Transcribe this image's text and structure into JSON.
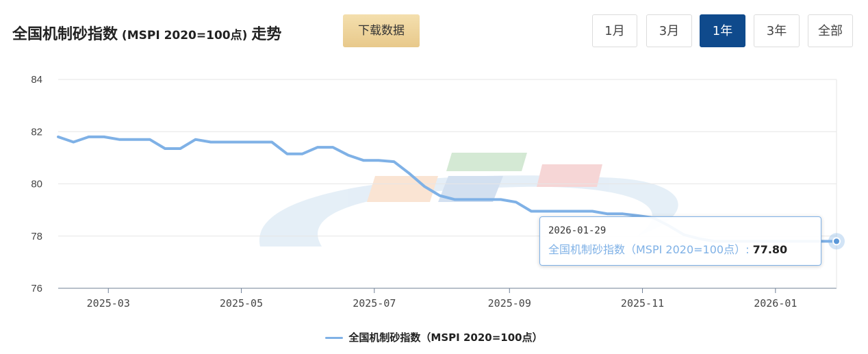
{
  "header": {
    "title_prefix": "全国机制砂指数",
    "title_mid": " (MSPI 2020=100点) ",
    "title_suffix": "走势",
    "download_label": "下载数据"
  },
  "range_buttons": [
    {
      "label": "1月",
      "active": false
    },
    {
      "label": "3月",
      "active": false
    },
    {
      "label": "1年",
      "active": true
    },
    {
      "label": "3年",
      "active": false
    },
    {
      "label": "全部",
      "active": false
    }
  ],
  "tooltip": {
    "date": "2026-01-29",
    "series_label": "全国机制砂指数（MSPI 2020=100点）",
    "separator": ":",
    "value": "77.80"
  },
  "legend": {
    "label": "全国机制砂指数（MSPI 2020=100点）"
  },
  "colors": {
    "line": "#7fb1e6",
    "active_button": "#0f4a8c",
    "download_button": "#ecd29c"
  },
  "chart_data": {
    "type": "line",
    "title": "",
    "xlabel": "",
    "ylabel": "",
    "ylim": [
      76,
      84
    ],
    "yticks": [
      76,
      78,
      80,
      82,
      84
    ],
    "xtick_labels": [
      "2025-03",
      "2025-05",
      "2025-07",
      "2025-09",
      "2025-11",
      "2026-01"
    ],
    "xtick_dates": [
      "2025-03-01",
      "2025-05-01",
      "2025-07-01",
      "2025-09-01",
      "2025-11-01",
      "2026-01-01"
    ],
    "xrange": [
      "2025-02-06",
      "2026-01-29"
    ],
    "grid": true,
    "legend_position": "bottom",
    "series": [
      {
        "name": "全国机制砂指数（MSPI 2020=100点）",
        "points": [
          [
            "2025-02-06",
            81.8
          ],
          [
            "2025-02-13",
            81.6
          ],
          [
            "2025-02-20",
            81.8
          ],
          [
            "2025-02-27",
            81.8
          ],
          [
            "2025-03-06",
            81.7
          ],
          [
            "2025-03-13",
            81.7
          ],
          [
            "2025-03-20",
            81.7
          ],
          [
            "2025-03-27",
            81.35
          ],
          [
            "2025-04-03",
            81.35
          ],
          [
            "2025-04-10",
            81.7
          ],
          [
            "2025-04-17",
            81.6
          ],
          [
            "2025-04-24",
            81.6
          ],
          [
            "2025-05-01",
            81.6
          ],
          [
            "2025-05-08",
            81.6
          ],
          [
            "2025-05-15",
            81.6
          ],
          [
            "2025-05-22",
            81.15
          ],
          [
            "2025-05-29",
            81.15
          ],
          [
            "2025-06-05",
            81.4
          ],
          [
            "2025-06-12",
            81.4
          ],
          [
            "2025-06-19",
            81.1
          ],
          [
            "2025-06-26",
            80.9
          ],
          [
            "2025-07-03",
            80.9
          ],
          [
            "2025-07-10",
            80.85
          ],
          [
            "2025-07-17",
            80.4
          ],
          [
            "2025-07-24",
            79.9
          ],
          [
            "2025-07-31",
            79.55
          ],
          [
            "2025-08-07",
            79.4
          ],
          [
            "2025-08-14",
            79.4
          ],
          [
            "2025-08-21",
            79.4
          ],
          [
            "2025-08-28",
            79.4
          ],
          [
            "2025-09-04",
            79.3
          ],
          [
            "2025-09-11",
            78.95
          ],
          [
            "2025-09-18",
            78.95
          ],
          [
            "2025-09-25",
            78.95
          ],
          [
            "2025-10-02",
            78.95
          ],
          [
            "2025-10-09",
            78.95
          ],
          [
            "2025-10-16",
            78.85
          ],
          [
            "2025-10-23",
            78.85
          ],
          [
            "2025-10-30",
            78.78
          ],
          [
            "2025-11-06",
            78.7
          ],
          [
            "2025-11-13",
            78.4
          ],
          [
            "2025-11-20",
            78.05
          ],
          [
            "2025-11-27",
            77.9
          ],
          [
            "2025-12-04",
            77.8
          ],
          [
            "2025-12-11",
            77.8
          ],
          [
            "2025-12-18",
            77.8
          ],
          [
            "2025-12-25",
            77.8
          ],
          [
            "2026-01-01",
            77.8
          ],
          [
            "2026-01-08",
            77.8
          ],
          [
            "2026-01-15",
            77.8
          ],
          [
            "2026-01-22",
            77.8
          ],
          [
            "2026-01-29",
            77.8
          ]
        ]
      }
    ]
  }
}
